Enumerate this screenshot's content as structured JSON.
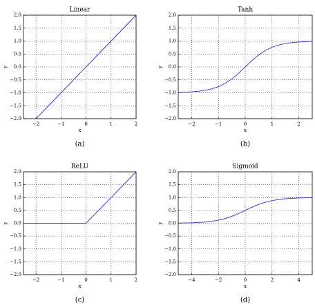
{
  "chart_data": [
    {
      "type": "line",
      "title": "Linear",
      "xlabel": "x",
      "ylabel": "y",
      "caption": "(a)",
      "color": "#3b3bc8",
      "grid": true,
      "x": [
        -2,
        2
      ],
      "values": [
        -2,
        2
      ],
      "xlim": [
        -2.5,
        2
      ],
      "ylim": [
        -2,
        2
      ],
      "xticks": [
        {
          "value": -2,
          "label": "−2"
        },
        {
          "value": -1,
          "label": "−1"
        },
        0,
        1,
        2
      ],
      "yticks": [
        {
          "value": -2,
          "label": "−2.0"
        },
        {
          "value": -1.5,
          "label": "−1.5"
        },
        {
          "value": -1,
          "label": "−1.0"
        },
        {
          "value": -0.5,
          "label": "−0.5"
        },
        {
          "value": 0,
          "label": "0.0"
        },
        0.5,
        {
          "value": 1,
          "label": "1.0"
        },
        1.5,
        {
          "value": 2,
          "label": "2.0"
        }
      ]
    },
    {
      "type": "line",
      "title": "Tanh",
      "xlabel": "x",
      "ylabel": "y",
      "caption": "(b)",
      "color": "#3b3bc8",
      "grid": true,
      "x": [
        -2.5,
        -2.25,
        -2,
        -1.75,
        -1.5,
        -1.25,
        -1,
        -0.75,
        -0.5,
        -0.25,
        0,
        0.25,
        0.5,
        0.75,
        1,
        1.25,
        1.5,
        1.75,
        2,
        2.25,
        2.5
      ],
      "values": [
        -0.987,
        -0.978,
        -0.964,
        -0.941,
        -0.905,
        -0.848,
        -0.762,
        -0.635,
        -0.462,
        -0.245,
        0,
        0.245,
        0.462,
        0.635,
        0.762,
        0.848,
        0.905,
        0.941,
        0.964,
        0.978,
        0.987
      ],
      "xlim": [
        -2.5,
        2.5
      ],
      "ylim": [
        -2,
        2
      ],
      "xticks": [
        {
          "value": -2,
          "label": "−2"
        },
        {
          "value": -1,
          "label": "−1"
        },
        0,
        1,
        2
      ],
      "yticks": [
        {
          "value": -2,
          "label": "−2.0"
        },
        {
          "value": -1.5,
          "label": "−1.5"
        },
        {
          "value": -1,
          "label": "−1.0"
        },
        {
          "value": -0.5,
          "label": "−0.5"
        },
        {
          "value": 0,
          "label": "0.0"
        },
        0.5,
        {
          "value": 1,
          "label": "1.0"
        },
        1.5,
        {
          "value": 2,
          "label": "2.0"
        }
      ]
    },
    {
      "type": "line",
      "title": "ReLU",
      "xlabel": "x",
      "ylabel": "y",
      "caption": "(c)",
      "color": "#3b3bc8",
      "grid": true,
      "x": [
        -2.5,
        0,
        2
      ],
      "values": [
        0,
        0,
        2
      ],
      "xlim": [
        -2.5,
        2
      ],
      "ylim": [
        -2,
        2
      ],
      "xticks": [
        {
          "value": -2,
          "label": "−2"
        },
        {
          "value": -1,
          "label": "−1"
        },
        0,
        1,
        2
      ],
      "yticks": [
        {
          "value": -2,
          "label": "−2.0"
        },
        {
          "value": -1.5,
          "label": "−1.5"
        },
        {
          "value": -1,
          "label": "−1.0"
        },
        {
          "value": -0.5,
          "label": "−0.5"
        },
        {
          "value": 0,
          "label": "0.0"
        },
        0.5,
        {
          "value": 1,
          "label": "1.0"
        },
        1.5,
        {
          "value": 2,
          "label": "2.0"
        }
      ]
    },
    {
      "type": "line",
      "title": "Sigmoid",
      "xlabel": "x",
      "ylabel": "y",
      "caption": "(d)",
      "color": "#3b3bc8",
      "grid": true,
      "x": [
        -5,
        -4.5,
        -4,
        -3.5,
        -3,
        -2.5,
        -2,
        -1.5,
        -1,
        -0.5,
        0,
        0.5,
        1,
        1.5,
        2,
        2.5,
        3,
        3.5,
        4,
        4.5,
        5
      ],
      "values": [
        0.007,
        0.011,
        0.018,
        0.029,
        0.047,
        0.076,
        0.119,
        0.182,
        0.269,
        0.378,
        0.5,
        0.622,
        0.731,
        0.818,
        0.881,
        0.924,
        0.953,
        0.971,
        0.982,
        0.989,
        0.993
      ],
      "xlim": [
        -5,
        5
      ],
      "ylim": [
        -2,
        2
      ],
      "xticks": [
        {
          "value": -4,
          "label": "−4"
        },
        {
          "value": -2,
          "label": "−2"
        },
        0,
        2,
        4
      ],
      "yticks": [
        {
          "value": -2,
          "label": "−2.0"
        },
        {
          "value": -1.5,
          "label": "−1.5"
        },
        {
          "value": -1,
          "label": "−1.0"
        },
        {
          "value": -0.5,
          "label": "−0.5"
        },
        {
          "value": 0,
          "label": "0.0"
        },
        0.5,
        {
          "value": 1,
          "label": "1.0"
        },
        1.5,
        {
          "value": 2,
          "label": "2.0"
        }
      ]
    }
  ]
}
